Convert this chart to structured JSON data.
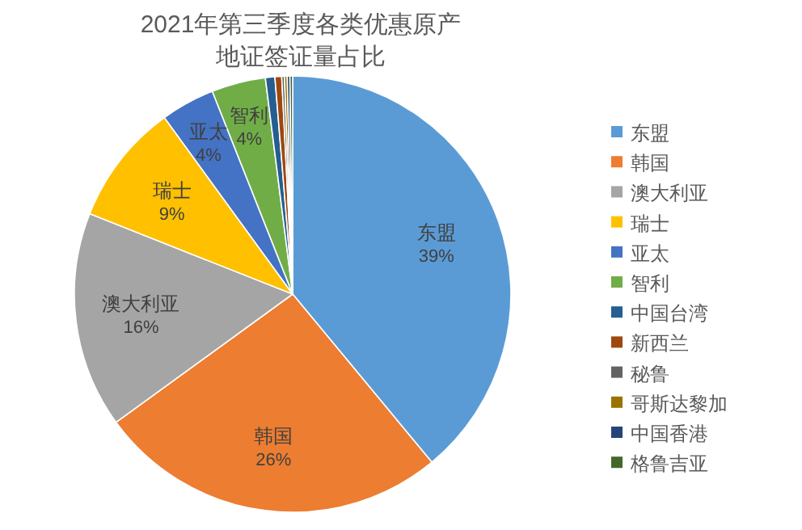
{
  "chart_data": {
    "type": "pie",
    "title": "2021年第三季度各类优惠原产地证签证量占比",
    "categories": [
      "东盟",
      "韩国",
      "澳大利亚",
      "瑞士",
      "亚太",
      "智利",
      "中国台湾",
      "新西兰",
      "秘鲁",
      "哥斯达黎加",
      "中国香港",
      "格鲁吉亚"
    ],
    "values": [
      39,
      26,
      16,
      9,
      4,
      4,
      0.7,
      0.5,
      0.2,
      0.2,
      0.2,
      0.2
    ],
    "colors": [
      "#5b9bd5",
      "#ed7d31",
      "#a5a5a5",
      "#ffc000",
      "#4472c4",
      "#70ad47",
      "#255e91",
      "#9e480e",
      "#636363",
      "#997300",
      "#264478",
      "#43682b"
    ],
    "value_labels": [
      "39%",
      "26%",
      "16%",
      "9%",
      "4%",
      "4%",
      null,
      null,
      null,
      null,
      null,
      null
    ],
    "legend": "right"
  }
}
